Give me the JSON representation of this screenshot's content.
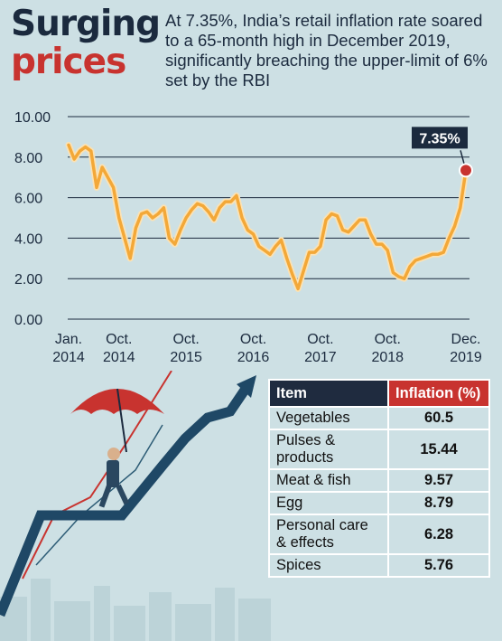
{
  "header": {
    "title_line1": "Surging",
    "title_line2": "prices",
    "subtitle": "At 7.35%, India’s retail inflation rate soared to a 65-month high in December 2019, significantly breaching the upper-limit of 6% set by the RBI"
  },
  "colors": {
    "navy": "#1b2a3e",
    "red": "#c8332f",
    "line": "#f3a838",
    "background": "#cde0e4"
  },
  "chart_data": {
    "type": "line",
    "title": "",
    "xlabel": "",
    "ylabel": "",
    "ylim": [
      0,
      10
    ],
    "y_ticks": [
      "10.00",
      "8.00",
      "6.00",
      "4.00",
      "2.00",
      "0.00"
    ],
    "x_ticks": [
      {
        "month": 0,
        "l1": "Jan.",
        "l2": "2014"
      },
      {
        "month": 9,
        "l1": "Oct.",
        "l2": "2014"
      },
      {
        "month": 21,
        "l1": "Oct.",
        "l2": "2015"
      },
      {
        "month": 33,
        "l1": "Oct.",
        "l2": "2016"
      },
      {
        "month": 45,
        "l1": "Oct.",
        "l2": "2017"
      },
      {
        "month": 57,
        "l1": "Oct.",
        "l2": "2018"
      },
      {
        "month": 71,
        "l1": "Dec.",
        "l2": "2019"
      }
    ],
    "grid": true,
    "annotation": {
      "label": "7.35%",
      "value": 7.35
    },
    "series": [
      {
        "values": [
          8.6,
          7.9,
          8.3,
          8.5,
          8.3,
          6.5,
          7.5,
          7.0,
          6.5,
          5.0,
          4.0,
          3.0,
          4.5,
          5.2,
          5.3,
          5.0,
          5.2,
          5.5,
          4.0,
          3.7,
          4.4,
          5.0,
          5.4,
          5.7,
          5.6,
          5.3,
          4.9,
          5.5,
          5.8,
          5.8,
          6.1,
          5.0,
          4.4,
          4.2,
          3.6,
          3.4,
          3.2,
          3.6,
          3.9,
          3.0,
          2.2,
          1.5,
          2.4,
          3.3,
          3.3,
          3.6,
          4.9,
          5.2,
          5.1,
          4.4,
          4.3,
          4.6,
          4.9,
          4.9,
          4.2,
          3.7,
          3.7,
          3.4,
          2.3,
          2.1,
          2.0,
          2.6,
          2.9,
          3.0,
          3.1,
          3.2,
          3.2,
          3.3,
          4.0,
          4.6,
          5.5,
          7.35
        ]
      }
    ]
  },
  "table": {
    "headers": [
      "Item",
      "Inflation (%)"
    ],
    "rows": [
      {
        "item": "Vegetables",
        "value": "60.5"
      },
      {
        "item": "Pulses & products",
        "value": "15.44"
      },
      {
        "item": "Meat & fish",
        "value": "9.57"
      },
      {
        "item": "Egg",
        "value": "8.79"
      },
      {
        "item": "Personal care & effects",
        "value": "6.28"
      },
      {
        "item": "Spices",
        "value": "5.76"
      }
    ]
  }
}
